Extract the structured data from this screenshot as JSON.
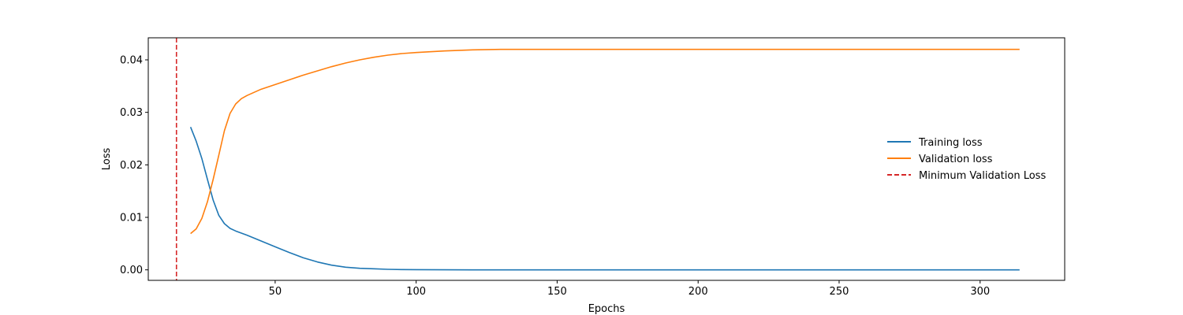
{
  "chart_data": {
    "type": "line",
    "title": "",
    "xlabel": "Epochs",
    "ylabel": "Loss",
    "xlim": [
      5,
      330
    ],
    "ylim": [
      -0.002,
      0.0442
    ],
    "xticks": [
      50,
      100,
      150,
      200,
      250,
      300
    ],
    "xtick_labels": [
      "50",
      "100",
      "150",
      "200",
      "250",
      "300"
    ],
    "yticks": [
      0.0,
      0.01,
      0.02,
      0.03,
      0.04
    ],
    "ytick_labels": [
      "0.00",
      "0.01",
      "0.02",
      "0.03",
      "0.04"
    ],
    "grid": false,
    "legend_position": "right",
    "series": [
      {
        "name": "Training loss",
        "color": "#1f77b4",
        "style": "solid",
        "x": [
          20,
          22,
          24,
          26,
          28,
          30,
          32,
          34,
          36,
          40,
          45,
          50,
          55,
          60,
          65,
          70,
          75,
          80,
          85,
          90,
          95,
          100,
          110,
          120,
          150,
          200,
          250,
          300,
          314
        ],
        "y": [
          0.0272,
          0.0245,
          0.0212,
          0.0172,
          0.0133,
          0.0104,
          0.0088,
          0.0079,
          0.0074,
          0.0066,
          0.0055,
          0.0044,
          0.0033,
          0.0023,
          0.0015,
          0.0009,
          0.0005,
          0.0003,
          0.0002,
          0.0001,
          5e-05,
          3e-05,
          1e-05,
          0.0,
          0.0,
          0.0,
          0.0,
          0.0,
          0.0
        ]
      },
      {
        "name": "Validation loss",
        "color": "#ff7f0e",
        "style": "solid",
        "x": [
          20,
          22,
          24,
          26,
          28,
          30,
          32,
          34,
          36,
          38,
          40,
          45,
          50,
          55,
          60,
          65,
          70,
          75,
          80,
          85,
          90,
          95,
          100,
          110,
          120,
          130,
          150,
          200,
          250,
          300,
          314
        ],
        "y": [
          0.0069,
          0.0078,
          0.0098,
          0.013,
          0.0172,
          0.0218,
          0.0265,
          0.0298,
          0.0316,
          0.0326,
          0.0332,
          0.0344,
          0.0353,
          0.0362,
          0.0371,
          0.0379,
          0.0387,
          0.0394,
          0.04,
          0.0405,
          0.0409,
          0.0412,
          0.0414,
          0.0417,
          0.0419,
          0.042,
          0.042,
          0.042,
          0.042,
          0.042,
          0.042
        ]
      }
    ],
    "vlines": [
      {
        "name": "Minimum Validation Loss",
        "x": 15,
        "color": "#d62728",
        "style": "dashed"
      }
    ]
  }
}
